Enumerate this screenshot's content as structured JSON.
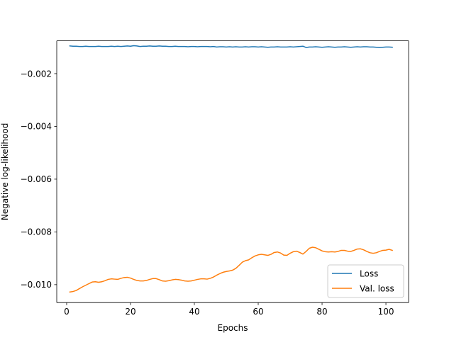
{
  "chart_data": {
    "type": "line",
    "title": "",
    "xlabel": "Epochs",
    "ylabel": "Negative log-likelihood",
    "xlim": [
      -3.1,
      107.1
    ],
    "ylim": [
      -0.01068,
      -0.000755
    ],
    "xticks": [
      0,
      20,
      40,
      60,
      80,
      100
    ],
    "xtick_labels": [
      "0",
      "20",
      "40",
      "60",
      "80",
      "100"
    ],
    "yticks": [
      -0.002,
      -0.004,
      -0.006,
      -0.008,
      -0.01
    ],
    "ytick_labels": [
      "−0.002",
      "−0.004",
      "−0.006",
      "−0.008",
      "−0.010"
    ],
    "grid": false,
    "legend_position": "bottom-right",
    "series": [
      {
        "name": "Loss",
        "color": "#1f77b4",
        "x": [
          1,
          2,
          3,
          4,
          5,
          6,
          7,
          8,
          9,
          10,
          11,
          12,
          13,
          14,
          15,
          16,
          17,
          18,
          19,
          20,
          21,
          22,
          23,
          24,
          25,
          26,
          27,
          28,
          29,
          30,
          31,
          32,
          33,
          34,
          35,
          36,
          37,
          38,
          39,
          40,
          41,
          42,
          43,
          44,
          45,
          46,
          47,
          48,
          49,
          50,
          51,
          52,
          53,
          54,
          55,
          56,
          57,
          58,
          59,
          60,
          61,
          62,
          63,
          64,
          65,
          66,
          67,
          68,
          69,
          70,
          71,
          72,
          73,
          74,
          75,
          76,
          77,
          78,
          79,
          80,
          81,
          82,
          83,
          84,
          85,
          86,
          87,
          88,
          89,
          90,
          91,
          92,
          93,
          94,
          95,
          96,
          97,
          98,
          99,
          100,
          101,
          102
        ],
        "y": [
          -0.00095,
          -0.00096,
          -0.00096,
          -0.00097,
          -0.00097,
          -0.00096,
          -0.00097,
          -0.00097,
          -0.00097,
          -0.00096,
          -0.00097,
          -0.00097,
          -0.00097,
          -0.00096,
          -0.00097,
          -0.00096,
          -0.00097,
          -0.00096,
          -0.00095,
          -0.00096,
          -0.00094,
          -0.00095,
          -0.00097,
          -0.00096,
          -0.00096,
          -0.00095,
          -0.00096,
          -0.00096,
          -0.00095,
          -0.00096,
          -0.00096,
          -0.00097,
          -0.00097,
          -0.00096,
          -0.00097,
          -0.00097,
          -0.00097,
          -0.00098,
          -0.00097,
          -0.00097,
          -0.00098,
          -0.00097,
          -0.00097,
          -0.00097,
          -0.00098,
          -0.00097,
          -0.00099,
          -0.00098,
          -0.00098,
          -0.00099,
          -0.00098,
          -0.00099,
          -0.00098,
          -0.00099,
          -0.00099,
          -0.00098,
          -0.00099,
          -0.00098,
          -0.00098,
          -0.00099,
          -0.00098,
          -0.00099,
          -0.001,
          -0.00099,
          -0.00099,
          -0.00098,
          -0.00099,
          -0.00099,
          -0.00099,
          -0.00098,
          -0.00099,
          -0.00098,
          -0.00097,
          -0.00096,
          -0.00101,
          -0.00099,
          -0.00099,
          -0.00098,
          -0.00099,
          -0.001,
          -0.00099,
          -0.00098,
          -0.00099,
          -0.001,
          -0.00099,
          -0.00099,
          -0.00098,
          -0.00099,
          -0.001,
          -0.00099,
          -0.00098,
          -0.00099,
          -0.00098,
          -0.00098,
          -0.00099,
          -0.00099,
          -0.001,
          -0.00101,
          -0.001,
          -0.00099,
          -0.00099,
          -0.001
        ]
      },
      {
        "name": "Val. loss",
        "color": "#ff7f0e",
        "x": [
          1,
          2,
          3,
          4,
          5,
          6,
          7,
          8,
          9,
          10,
          11,
          12,
          13,
          14,
          15,
          16,
          17,
          18,
          19,
          20,
          21,
          22,
          23,
          24,
          25,
          26,
          27,
          28,
          29,
          30,
          31,
          32,
          33,
          34,
          35,
          36,
          37,
          38,
          39,
          40,
          41,
          42,
          43,
          44,
          45,
          46,
          47,
          48,
          49,
          50,
          51,
          52,
          53,
          54,
          55,
          56,
          57,
          58,
          59,
          60,
          61,
          62,
          63,
          64,
          65,
          66,
          67,
          68,
          69,
          70,
          71,
          72,
          73,
          74,
          75,
          76,
          77,
          78,
          79,
          80,
          81,
          82,
          83,
          84,
          85,
          86,
          87,
          88,
          89,
          90,
          91,
          92,
          93,
          94,
          95,
          96,
          97,
          98,
          99,
          100,
          101,
          102
        ],
        "y": [
          -0.01028,
          -0.01026,
          -0.01022,
          -0.01015,
          -0.01008,
          -0.01002,
          -0.00996,
          -0.0099,
          -0.00989,
          -0.00991,
          -0.00989,
          -0.00985,
          -0.0098,
          -0.00978,
          -0.00979,
          -0.0098,
          -0.00976,
          -0.00973,
          -0.00972,
          -0.00975,
          -0.0098,
          -0.00984,
          -0.00986,
          -0.00986,
          -0.00984,
          -0.0098,
          -0.00977,
          -0.00977,
          -0.00981,
          -0.00986,
          -0.00987,
          -0.00985,
          -0.00982,
          -0.0098,
          -0.00981,
          -0.00983,
          -0.00986,
          -0.00987,
          -0.00986,
          -0.00983,
          -0.0098,
          -0.00978,
          -0.00978,
          -0.00979,
          -0.00976,
          -0.00971,
          -0.00964,
          -0.00958,
          -0.00953,
          -0.0095,
          -0.00948,
          -0.00945,
          -0.00938,
          -0.00927,
          -0.00915,
          -0.00909,
          -0.00906,
          -0.00898,
          -0.00891,
          -0.00887,
          -0.00885,
          -0.00887,
          -0.00889,
          -0.00885,
          -0.00878,
          -0.00876,
          -0.0088,
          -0.00888,
          -0.00889,
          -0.00881,
          -0.00875,
          -0.00873,
          -0.00878,
          -0.00884,
          -0.00874,
          -0.00862,
          -0.00858,
          -0.0086,
          -0.00866,
          -0.00872,
          -0.00875,
          -0.00876,
          -0.00875,
          -0.00876,
          -0.00874,
          -0.0087,
          -0.0087,
          -0.00873,
          -0.00874,
          -0.0087,
          -0.00865,
          -0.00864,
          -0.00868,
          -0.00874,
          -0.00879,
          -0.00881,
          -0.00879,
          -0.00874,
          -0.0087,
          -0.00869,
          -0.00866,
          -0.0087
        ]
      }
    ]
  }
}
